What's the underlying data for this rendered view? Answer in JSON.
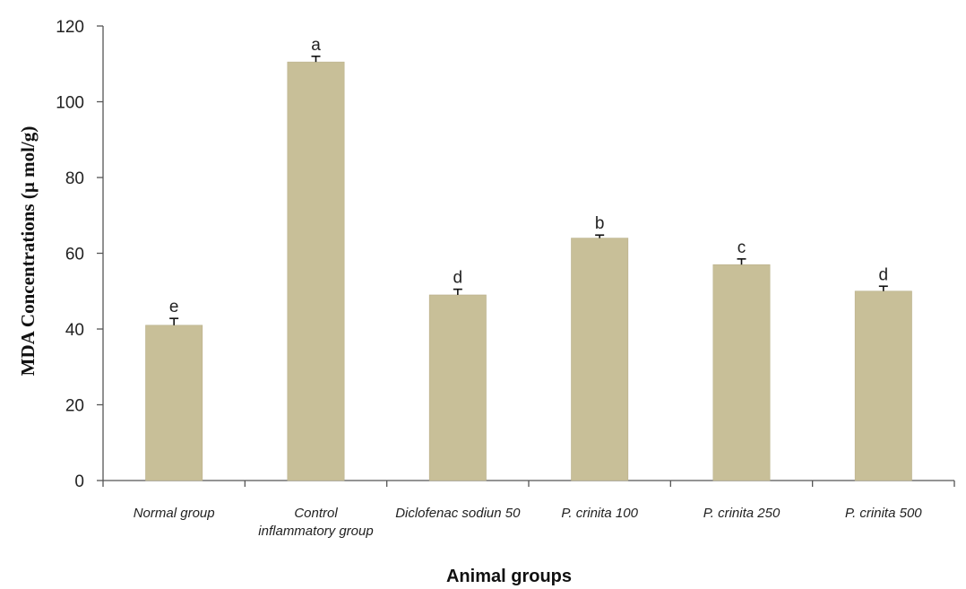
{
  "chart_data": {
    "type": "bar",
    "categories": [
      [
        "Normal group"
      ],
      [
        "Control",
        "inflammatory group"
      ],
      [
        "Diclofenac sodiun 50"
      ],
      [
        "P. crinita 100"
      ],
      [
        "P. crinita 250"
      ],
      [
        "P. crinita 500"
      ]
    ],
    "values": [
      41,
      110.5,
      49,
      64,
      57,
      50
    ],
    "errors": [
      1.8,
      1.5,
      1.5,
      0.8,
      1.5,
      1.3
    ],
    "significance_letters": [
      "e",
      "a",
      "d",
      "b",
      "c",
      "d"
    ],
    "xlabel": "Animal groups",
    "ylabel": "MDA  Concentrations (µ mol/g)",
    "ylim": [
      0,
      120
    ],
    "yticks": [
      0,
      20,
      40,
      60,
      80,
      100,
      120
    ],
    "grid": false,
    "colors": {
      "bar": "#c8bf98",
      "bar_edge": "#b9b08a",
      "axis": "#555555",
      "error": "#111111"
    }
  }
}
